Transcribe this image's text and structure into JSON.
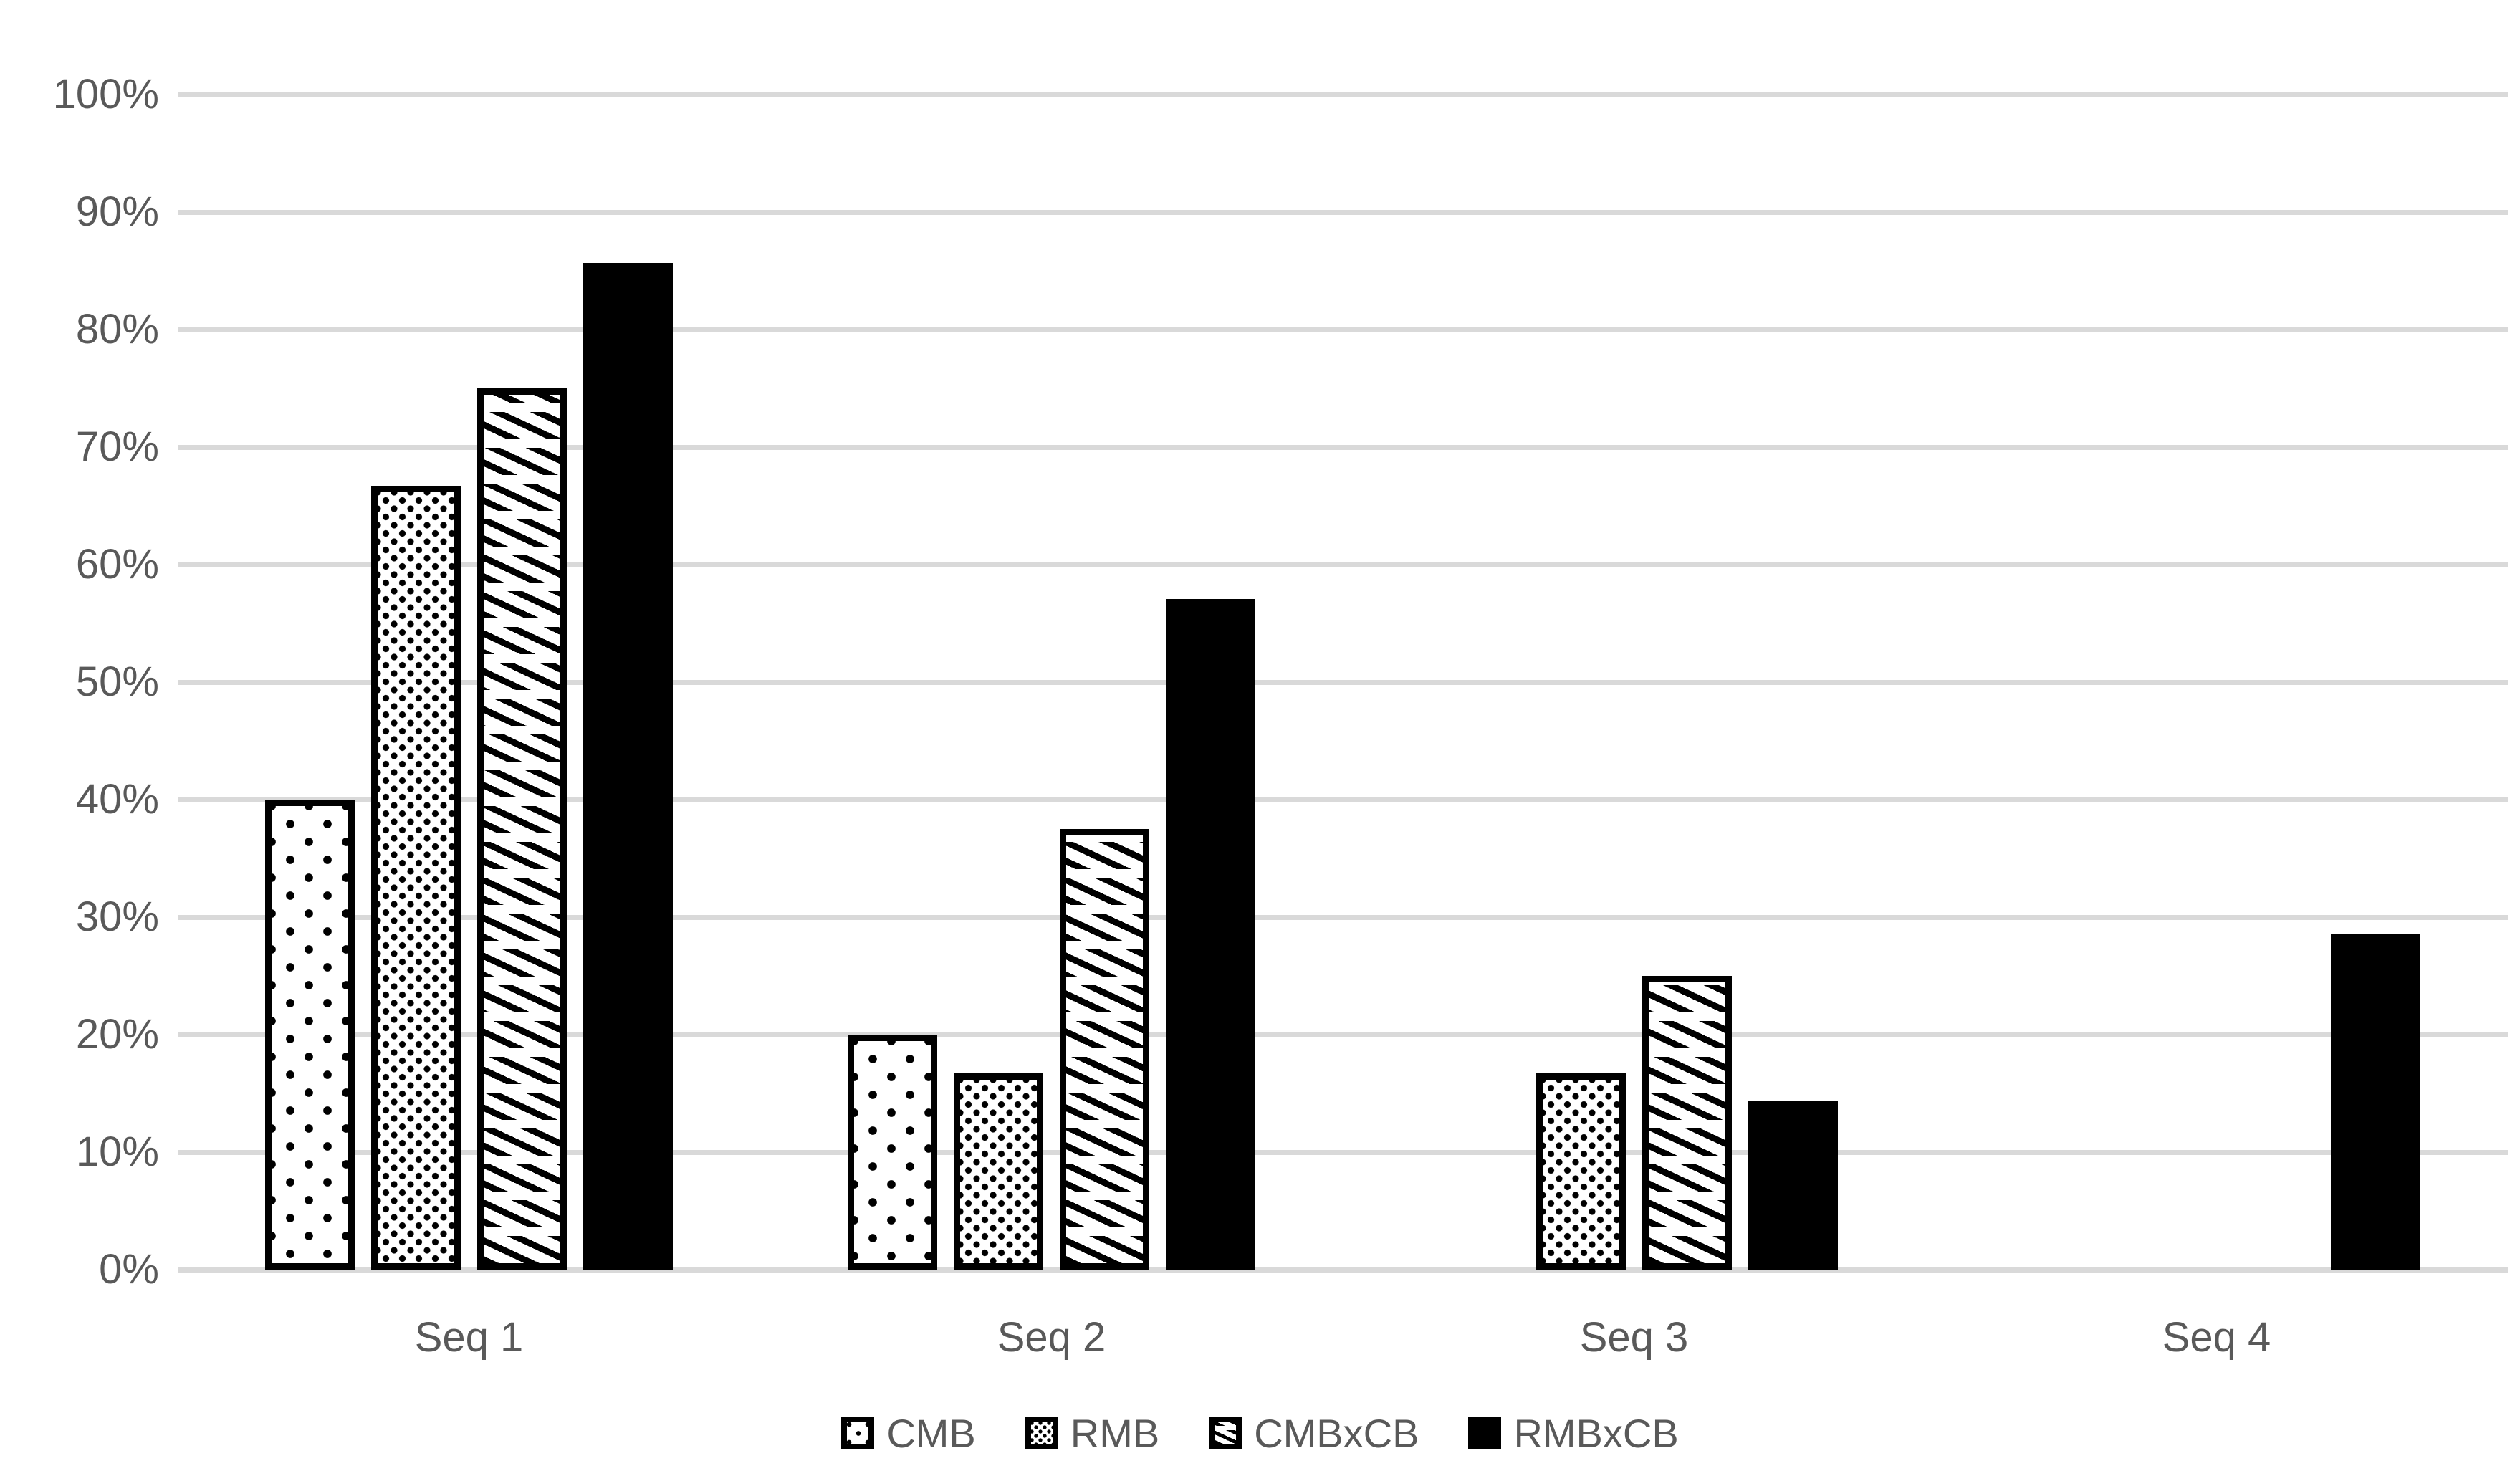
{
  "chart_data": {
    "type": "bar",
    "title": "",
    "xlabel": "",
    "ylabel": "",
    "categories": [
      "Seq 1",
      "Seq 2",
      "Seq 3",
      "Seq 4"
    ],
    "series": [
      {
        "name": "CMB",
        "pattern": "sparse-dots",
        "values": [
          40,
          20,
          null,
          null
        ]
      },
      {
        "name": "RMB",
        "pattern": "dense-dots",
        "values": [
          66.7,
          16.7,
          16.7,
          null
        ]
      },
      {
        "name": "CMBxCB",
        "pattern": "diagonal-dashes",
        "values": [
          75,
          37.5,
          25,
          null
        ]
      },
      {
        "name": "RMBxCB",
        "pattern": "solid-black",
        "values": [
          85.7,
          57.1,
          14.3,
          28.6
        ]
      }
    ],
    "ylim": [
      0,
      100
    ],
    "yticks": [
      "0%",
      "10%",
      "20%",
      "30%",
      "40%",
      "50%",
      "60%",
      "70%",
      "80%",
      "90%",
      "100%"
    ],
    "grid": "horizontal",
    "legend_position": "bottom",
    "colors": {
      "bar_fill": "#000000",
      "bar_background": "#FFFFFF",
      "text": "#595959",
      "gridline": "#D9D9D9",
      "background": "#FFFFFF"
    }
  }
}
